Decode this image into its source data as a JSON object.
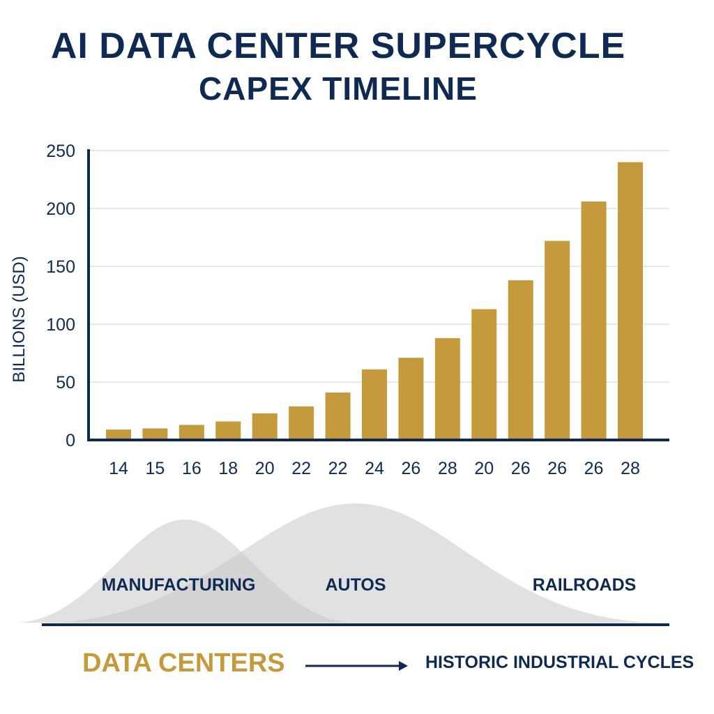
{
  "chart_data": {
    "type": "bar",
    "title": "AI DATA CENTER SUPERCYCLE",
    "subtitle": "CAPEX TIMELINE",
    "ylabel": "BILLIONS (USD)",
    "xlabel": "",
    "ylim": [
      0,
      250
    ],
    "yticks": [
      0,
      50,
      100,
      150,
      200,
      250
    ],
    "grid": true,
    "categories": [
      "14",
      "15",
      "16",
      "18",
      "20",
      "22",
      "22",
      "24",
      "26",
      "28",
      "20",
      "26",
      "26",
      "26",
      "28"
    ],
    "values": [
      9,
      10,
      13,
      16,
      23,
      29,
      41,
      61,
      71,
      88,
      113,
      138,
      172,
      206,
      240
    ],
    "bar_color": "#c49a3c"
  },
  "cycles": {
    "labels": [
      "MANUFACTURING",
      "AUTOS",
      "RAILROADS"
    ],
    "fill_color": "#c8c8c8"
  },
  "legend": {
    "left_label": "DATA CENTERS",
    "right_label": "HISTORIC INDUSTRIAL CYCLES"
  },
  "colors": {
    "navy": "#0f2a52",
    "gold": "#c49a3c",
    "grid": "#e8e8e8"
  }
}
